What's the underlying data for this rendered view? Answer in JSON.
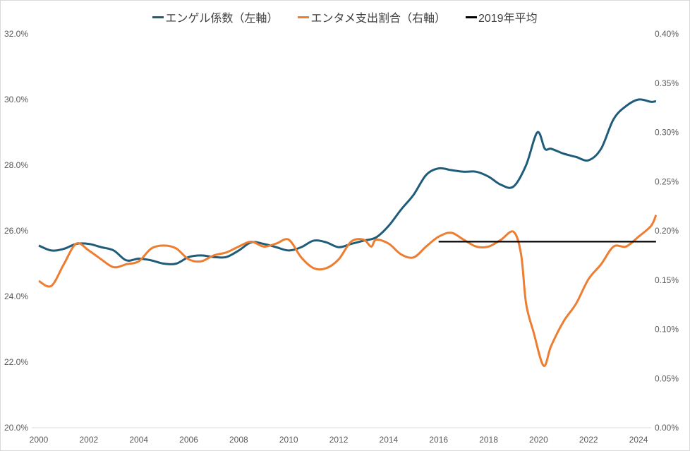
{
  "chart_data": {
    "type": "line",
    "title": "",
    "legend_position": "top",
    "grid": false,
    "xlim": [
      2000,
      2024.8
    ],
    "x_ticks": [
      "2000",
      "2002",
      "2004",
      "2006",
      "2008",
      "2010",
      "2012",
      "2014",
      "2016",
      "2018",
      "2020",
      "2022",
      "2024"
    ],
    "y_left": {
      "range": [
        20,
        32
      ],
      "ticks": [
        "20.0%",
        "22.0%",
        "24.0%",
        "26.0%",
        "28.0%",
        "30.0%",
        "32.0%"
      ]
    },
    "y_right": {
      "range": [
        0,
        0.4
      ],
      "ticks": [
        "0.00%",
        "0.05%",
        "0.10%",
        "0.15%",
        "0.20%",
        "0.25%",
        "0.30%",
        "0.35%",
        "0.40%"
      ]
    },
    "series": [
      {
        "name": "エンゲル係数（左軸）",
        "axis": "left",
        "color": "#1f5c7a",
        "x": [
          2000,
          2000.5,
          2001,
          2001.5,
          2002,
          2002.5,
          2003,
          2003.5,
          2004,
          2004.5,
          2005,
          2005.5,
          2006,
          2006.5,
          2007,
          2007.5,
          2008,
          2008.5,
          2009,
          2009.5,
          2010,
          2010.5,
          2011,
          2011.5,
          2012,
          2012.5,
          2013,
          2013.5,
          2014,
          2014.5,
          2015,
          2015.5,
          2016,
          2016.5,
          2017,
          2017.5,
          2018,
          2018.5,
          2019,
          2019.5,
          2019.95,
          2020.25,
          2020.5,
          2021,
          2021.5,
          2022,
          2022.5,
          2023,
          2023.5,
          2024,
          2024.5,
          2024.7
        ],
        "values": [
          25.55,
          25.4,
          25.45,
          25.6,
          25.6,
          25.5,
          25.4,
          25.1,
          25.15,
          25.1,
          25.0,
          25.0,
          25.2,
          25.25,
          25.2,
          25.2,
          25.4,
          25.65,
          25.6,
          25.5,
          25.4,
          25.5,
          25.7,
          25.65,
          25.5,
          25.6,
          25.7,
          25.8,
          26.15,
          26.65,
          27.1,
          27.7,
          27.9,
          27.85,
          27.8,
          27.8,
          27.65,
          27.4,
          27.35,
          28.0,
          29.0,
          28.5,
          28.5,
          28.35,
          28.25,
          28.15,
          28.5,
          29.4,
          29.8,
          30.0,
          29.93,
          29.95
        ]
      },
      {
        "name": "エンタメ支出割合（右軸）",
        "axis": "right",
        "color": "#ed7d31",
        "x": [
          2000,
          2000.5,
          2001,
          2001.5,
          2002,
          2002.5,
          2003,
          2003.5,
          2004,
          2004.5,
          2005,
          2005.5,
          2006,
          2006.5,
          2007,
          2007.5,
          2008,
          2008.5,
          2009,
          2009.5,
          2010,
          2010.5,
          2011,
          2011.5,
          2012,
          2012.5,
          2013,
          2013.3,
          2013.5,
          2014,
          2014.5,
          2015,
          2015.5,
          2016,
          2016.5,
          2017,
          2017.5,
          2018,
          2018.5,
          2019,
          2019.3,
          2019.5,
          2019.8,
          2020.2,
          2020.5,
          2021,
          2021.5,
          2022,
          2022.5,
          2023,
          2023.5,
          2024,
          2024.5,
          2024.7
        ],
        "values": [
          0.149,
          0.144,
          0.166,
          0.187,
          0.18,
          0.171,
          0.163,
          0.166,
          0.169,
          0.182,
          0.185,
          0.182,
          0.171,
          0.169,
          0.175,
          0.178,
          0.184,
          0.189,
          0.184,
          0.187,
          0.191,
          0.173,
          0.162,
          0.162,
          0.171,
          0.189,
          0.191,
          0.184,
          0.191,
          0.187,
          0.176,
          0.173,
          0.184,
          0.194,
          0.198,
          0.191,
          0.184,
          0.184,
          0.191,
          0.199,
          0.176,
          0.126,
          0.097,
          0.063,
          0.083,
          0.108,
          0.126,
          0.151,
          0.166,
          0.184,
          0.184,
          0.194,
          0.205,
          0.216
        ]
      },
      {
        "name": "2019年平均",
        "axis": "right",
        "color": "#000000",
        "x": [
          2016,
          2024.7
        ],
        "values": [
          0.189,
          0.189
        ]
      }
    ]
  }
}
